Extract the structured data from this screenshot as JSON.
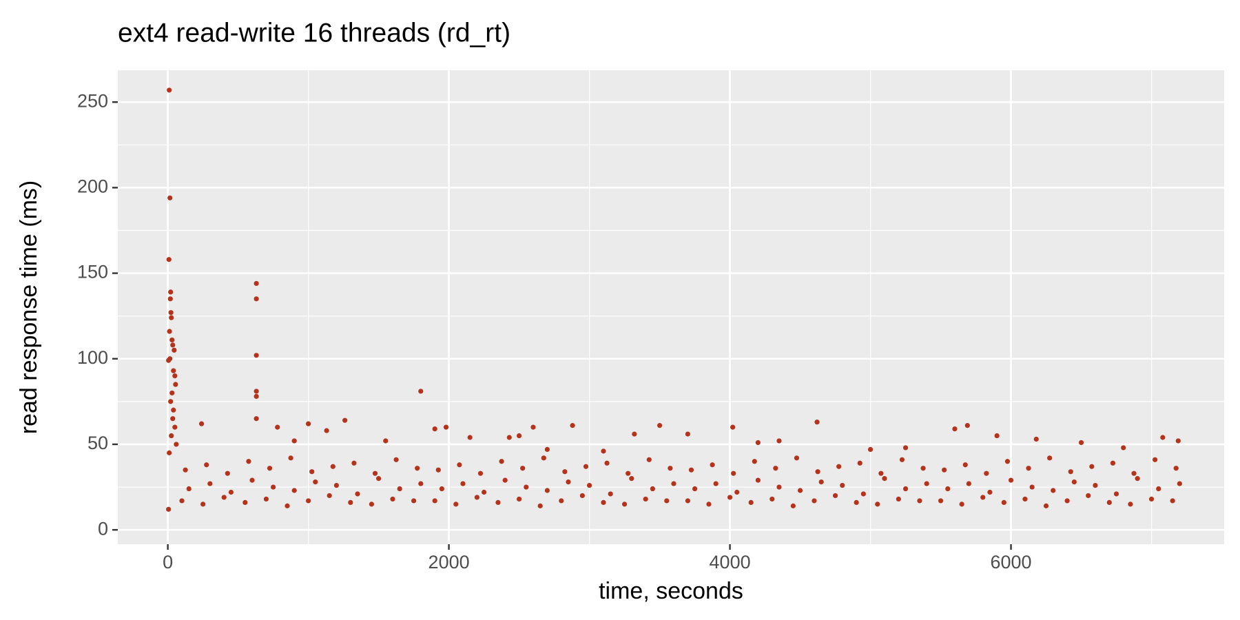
{
  "chart_data": {
    "type": "scatter",
    "title": "ext4 read-write 16 threads (rd_rt)",
    "x_label": "time, seconds",
    "y_label": "read response time (ms)",
    "color": "#b5331a",
    "grid": true,
    "xlim": [
      -356,
      7517
    ],
    "ylim": [
      -8.4,
      268.6
    ],
    "xticks": [
      0,
      2000,
      4000,
      6000
    ],
    "yticks": [
      0,
      50,
      100,
      150,
      200,
      250
    ],
    "x_minor_ticks": [
      1000,
      3000,
      5000,
      7000
    ],
    "y_minor_ticks": [
      25,
      75,
      125,
      175,
      225
    ],
    "x": [
      10,
      15,
      8,
      20,
      18,
      22,
      25,
      12,
      30,
      35,
      45,
      5,
      15,
      40,
      50,
      55,
      30,
      20,
      40,
      35,
      50,
      25,
      60,
      10,
      5,
      630,
      630,
      630,
      630,
      630,
      630,
      240,
      780,
      1000,
      1130,
      1260,
      1800,
      1900,
      1980,
      2150,
      2430,
      2500,
      2600,
      2880,
      3320,
      3500,
      3700,
      4020,
      4200,
      4350,
      4620,
      5000,
      5600,
      5690,
      5900,
      6180,
      6500,
      7080,
      7190,
      900,
      1550,
      3100,
      6800,
      5250,
      2700,
      100,
      250,
      400,
      550,
      700,
      850,
      1000,
      1150,
      1300,
      1450,
      1600,
      1750,
      1900,
      2050,
      2200,
      2350,
      2500,
      2650,
      2800,
      2950,
      3100,
      3250,
      3400,
      3550,
      3700,
      3850,
      4000,
      4150,
      4300,
      4450,
      4600,
      4750,
      4900,
      5050,
      5200,
      5350,
      5500,
      5650,
      5800,
      5950,
      6100,
      6250,
      6400,
      6550,
      6700,
      6850,
      7000,
      7150,
      150,
      300,
      450,
      600,
      750,
      900,
      1050,
      1200,
      1350,
      1500,
      1650,
      1800,
      1950,
      2100,
      2250,
      2400,
      2550,
      2700,
      2850,
      3000,
      3150,
      3300,
      3450,
      3600,
      3750,
      3900,
      4050,
      4200,
      4350,
      4500,
      4650,
      4800,
      4950,
      5100,
      5250,
      5400,
      5550,
      5700,
      5850,
      6000,
      6150,
      6300,
      6450,
      6600,
      6750,
      6900,
      7050,
      7200,
      125,
      275,
      425,
      575,
      725,
      875,
      1025,
      1175,
      1325,
      1475,
      1625,
      1775,
      1925,
      2075,
      2225,
      2375,
      2525,
      2675,
      2825,
      2975,
      3125,
      3275,
      3425,
      3575,
      3725,
      3875,
      4025,
      4175,
      4325,
      4475,
      4625,
      4775,
      4925,
      5075,
      5225,
      5375,
      5525,
      5675,
      5825,
      5975,
      6125,
      6275,
      6425,
      6575,
      6725,
      6875,
      7025,
      7175
    ],
    "values": [
      257,
      194,
      158,
      139,
      135,
      127,
      124,
      116,
      111,
      108,
      105,
      99,
      100,
      93,
      90,
      85,
      80,
      75,
      70,
      65,
      60,
      55,
      50,
      45,
      12,
      144,
      135,
      102,
      81,
      78,
      65,
      62,
      60,
      62,
      58,
      64,
      81,
      59,
      60,
      54,
      54,
      55,
      60,
      61,
      56,
      61,
      56,
      60,
      51,
      52,
      63,
      47,
      59,
      61,
      55,
      53,
      51,
      54,
      52,
      52,
      52,
      46,
      48,
      48,
      47,
      17,
      15,
      19,
      16,
      18,
      14,
      17,
      20,
      16,
      15,
      18,
      17,
      17,
      15,
      19,
      16,
      18,
      14,
      17,
      20,
      16,
      15,
      18,
      17,
      17,
      15,
      19,
      16,
      18,
      14,
      17,
      20,
      16,
      15,
      18,
      17,
      17,
      15,
      19,
      16,
      18,
      14,
      17,
      20,
      16,
      15,
      18,
      17,
      24,
      27,
      22,
      29,
      25,
      23,
      28,
      26,
      21,
      30,
      24,
      27,
      24,
      27,
      22,
      29,
      25,
      23,
      28,
      26,
      21,
      30,
      24,
      27,
      24,
      27,
      22,
      29,
      25,
      23,
      28,
      26,
      21,
      30,
      24,
      27,
      24,
      27,
      22,
      29,
      25,
      23,
      28,
      26,
      21,
      30,
      24,
      27,
      35,
      38,
      33,
      40,
      36,
      42,
      34,
      37,
      39,
      33,
      41,
      36,
      35,
      38,
      33,
      40,
      36,
      42,
      34,
      37,
      39,
      33,
      41,
      36,
      35,
      38,
      33,
      40,
      36,
      42,
      34,
      37,
      39,
      33,
      41,
      36,
      35,
      38,
      33,
      40,
      36,
      42,
      34,
      37,
      39,
      33,
      41,
      36
    ]
  }
}
